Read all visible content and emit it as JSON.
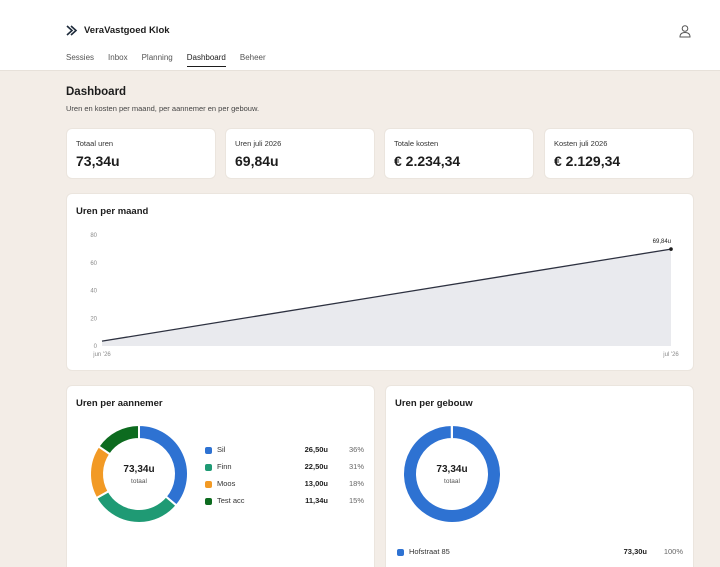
{
  "app": {
    "name": "VeraVastgoed Klok"
  },
  "nav": [
    {
      "label": "Sessies",
      "active": false
    },
    {
      "label": "Inbox",
      "active": false
    },
    {
      "label": "Planning",
      "active": false
    },
    {
      "label": "Dashboard",
      "active": true
    },
    {
      "label": "Beheer",
      "active": false
    }
  ],
  "icons": {
    "brand": "brand-logo-icon",
    "user": "user-icon"
  },
  "page": {
    "title": "Dashboard",
    "subtitle": "Uren en kosten per maand, per aannemer en per gebouw."
  },
  "stats": [
    {
      "label": "Totaal uren",
      "value": "73,34u"
    },
    {
      "label": "Uren juli 2026",
      "value": "69,84u"
    },
    {
      "label": "Totale kosten",
      "value": "€ 2.234,34"
    },
    {
      "label": "Kosten juli 2026",
      "value": "€ 2.129,34"
    }
  ],
  "colors": {
    "accent": "#1d1d1d",
    "blue": "#2e72d2",
    "teal": "#1f9a74",
    "orange": "#f29a25",
    "darkgreen": "#0d6b1f",
    "area": "#e9eaee",
    "line": "#2d3140"
  },
  "chart_data": [
    {
      "type": "area",
      "title": "Uren per maand",
      "x": [
        "jun '26",
        "jul '26"
      ],
      "series": [
        {
          "values": [
            3.5,
            69.84
          ]
        }
      ],
      "data_labels": [
        "",
        "69,84u"
      ],
      "yticks": [
        0,
        20,
        40,
        60,
        80
      ],
      "ylim": [
        0,
        80
      ],
      "grid": false
    },
    {
      "type": "pie",
      "title": "Uren per aannemer",
      "center_value": "73,34u",
      "center_label": "totaal",
      "slices": [
        {
          "name": "Sil",
          "value": 26.5,
          "label": "26,50u",
          "pct": "36%",
          "color": "#2e72d2"
        },
        {
          "name": "Finn",
          "value": 22.5,
          "label": "22,50u",
          "pct": "31%",
          "color": "#1f9a74"
        },
        {
          "name": "Moos",
          "value": 13.0,
          "label": "13,00u",
          "pct": "18%",
          "color": "#f29a25"
        },
        {
          "name": "Test acc",
          "value": 11.34,
          "label": "11,34u",
          "pct": "15%",
          "color": "#0d6b1f"
        }
      ]
    },
    {
      "type": "pie",
      "title": "Uren per gebouw",
      "center_value": "73,34u",
      "center_label": "totaal",
      "slices": [
        {
          "name": "Hofstraat 85",
          "value": 73.3,
          "label": "73,30u",
          "pct": "100%",
          "color": "#2e72d2"
        },
        {
          "name": "",
          "value": 0.04,
          "label": "",
          "pct": "",
          "color": "#1f9a74"
        }
      ]
    }
  ]
}
